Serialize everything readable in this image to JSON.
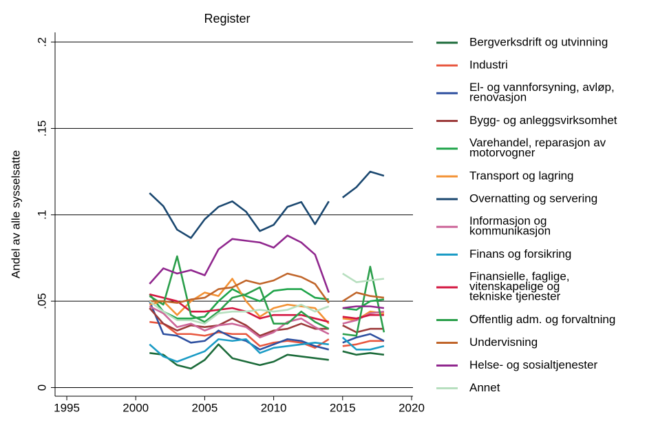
{
  "chart_data": {
    "type": "line",
    "title": "Register",
    "y_label": "Andel av alle sysselsatte",
    "x": [
      2001,
      2002,
      2003,
      2004,
      2005,
      2006,
      2007,
      2008,
      2009,
      2010,
      2011,
      2012,
      2013,
      2014,
      null,
      2015,
      2016,
      2017,
      2018
    ],
    "xlim": [
      1994.15,
      2020.1
    ],
    "xticks": [
      1995,
      2000,
      2005,
      2010,
      2015,
      2020
    ],
    "ylim": [
      -0.005,
      0.2056
    ],
    "yticks": [
      0,
      {
        "value": 0.05,
        "label": ".05"
      },
      {
        "value": 0.1,
        "label": ".1"
      },
      {
        "value": 0.15,
        "label": ".15"
      },
      {
        "value": 0.2,
        "label": ".2"
      }
    ],
    "grid": true,
    "series": [
      {
        "name": "Bergverksdrift og utvinning",
        "color": "#1c6b3a",
        "values": [
          0.02,
          0.019,
          0.013,
          0.011,
          0.016,
          0.025,
          0.017,
          0.015,
          0.013,
          0.015,
          0.019,
          0.018,
          0.017,
          0.016,
          null,
          0.021,
          0.019,
          0.02,
          0.019
        ]
      },
      {
        "name": "Industri",
        "color": "#e8573f",
        "values": [
          0.038,
          0.037,
          0.031,
          0.031,
          0.03,
          0.032,
          0.031,
          0.031,
          0.024,
          0.026,
          0.027,
          0.026,
          0.023,
          0.028,
          null,
          0.024,
          0.025,
          0.027,
          0.027
        ]
      },
      {
        "name": "El- og vannforsyning, avløp,\nrenovasjon",
        "color": "#2d4f9f",
        "values": [
          0.05,
          0.031,
          0.03,
          0.026,
          0.027,
          0.033,
          0.029,
          0.027,
          0.022,
          0.025,
          0.028,
          0.027,
          0.024,
          0.022,
          null,
          0.026,
          0.029,
          0.031,
          0.027
        ]
      },
      {
        "name": "Bygg- og anleggsvirksomhet",
        "color": "#9c3a3a",
        "values": [
          0.046,
          0.037,
          0.033,
          0.036,
          0.035,
          0.036,
          0.04,
          0.036,
          0.03,
          0.033,
          0.034,
          0.037,
          0.034,
          0.034,
          null,
          0.036,
          0.032,
          0.034,
          0.034
        ]
      },
      {
        "name": "Varehandel, reparasjon av\nmotorvogner",
        "color": "#1fa44a",
        "values": [
          0.054,
          0.044,
          0.04,
          0.04,
          0.041,
          0.05,
          0.057,
          0.053,
          0.05,
          0.056,
          0.057,
          0.057,
          0.052,
          0.051,
          null,
          0.046,
          0.045,
          0.05,
          0.051
        ]
      },
      {
        "name": "Transport og lagring",
        "color": "#f39234",
        "values": [
          0.048,
          0.05,
          0.042,
          0.05,
          0.055,
          0.053,
          0.063,
          0.05,
          0.041,
          0.046,
          0.048,
          0.047,
          0.046,
          0.037,
          null,
          0.04,
          0.039,
          0.044,
          0.043
        ]
      },
      {
        "name": "Overnatting og servering",
        "color": "#1a476f",
        "values": [
          0.1126,
          0.105,
          0.0914,
          0.0866,
          0.0974,
          0.1046,
          0.1078,
          0.1018,
          0.0906,
          0.0942,
          0.1046,
          0.1074,
          0.0946,
          0.1078,
          null,
          0.11,
          0.116,
          0.125,
          0.1226
        ]
      },
      {
        "name": "Informasjon og\nkommunikasjon",
        "color": "#cc6699",
        "values": [
          0.047,
          0.043,
          0.035,
          0.037,
          0.033,
          0.036,
          0.037,
          0.035,
          0.029,
          0.032,
          0.038,
          0.04,
          0.035,
          0.031,
          null,
          0.037,
          0.039,
          0.043,
          0.044
        ]
      },
      {
        "name": "Finans og forsikring",
        "color": "#1a9bc5",
        "values": [
          0.025,
          0.018,
          0.015,
          0.018,
          0.021,
          0.028,
          0.027,
          0.028,
          0.02,
          0.023,
          0.024,
          0.025,
          0.026,
          0.025,
          null,
          0.029,
          0.022,
          0.022,
          0.024
        ]
      },
      {
        "name": "Finansielle, faglige,\nvitenskapelige og\ntekniske tjenester",
        "color": "#d3153f",
        "values": [
          0.054,
          0.052,
          0.05,
          0.044,
          0.044,
          0.045,
          0.046,
          0.044,
          0.04,
          0.042,
          0.042,
          0.042,
          0.04,
          0.038,
          null,
          0.041,
          0.04,
          0.042,
          0.042
        ]
      },
      {
        "name": "Offentlig adm. og forvaltning",
        "color": "#2a9e4a",
        "values": [
          0.053,
          0.048,
          0.076,
          0.042,
          0.038,
          0.044,
          0.052,
          0.054,
          0.058,
          0.037,
          0.037,
          0.044,
          0.038,
          0.034,
          null,
          0.031,
          0.03,
          0.07,
          0.032
        ]
      },
      {
        "name": "Undervisning",
        "color": "#c0652a",
        "values": [
          0.05,
          0.05,
          0.049,
          0.051,
          0.052,
          0.057,
          0.058,
          0.062,
          0.06,
          0.062,
          0.066,
          0.064,
          0.06,
          0.049,
          null,
          0.05,
          0.055,
          0.053,
          0.052
        ]
      },
      {
        "name": "Helse- og sosialtjenester",
        "color": "#90278e",
        "values": [
          0.06,
          0.069,
          0.066,
          0.068,
          0.065,
          0.08,
          0.086,
          0.085,
          0.084,
          0.081,
          0.088,
          0.084,
          0.077,
          0.055,
          null,
          0.046,
          0.047,
          0.047,
          0.046
        ]
      },
      {
        "name": "Annet",
        "color": "#b7dfbf",
        "values": [
          0.05,
          0.044,
          0.039,
          0.039,
          0.037,
          0.043,
          0.044,
          0.044,
          0.045,
          0.044,
          0.045,
          0.048,
          0.044,
          0.047,
          null,
          0.066,
          0.061,
          0.062,
          0.063
        ]
      }
    ]
  }
}
